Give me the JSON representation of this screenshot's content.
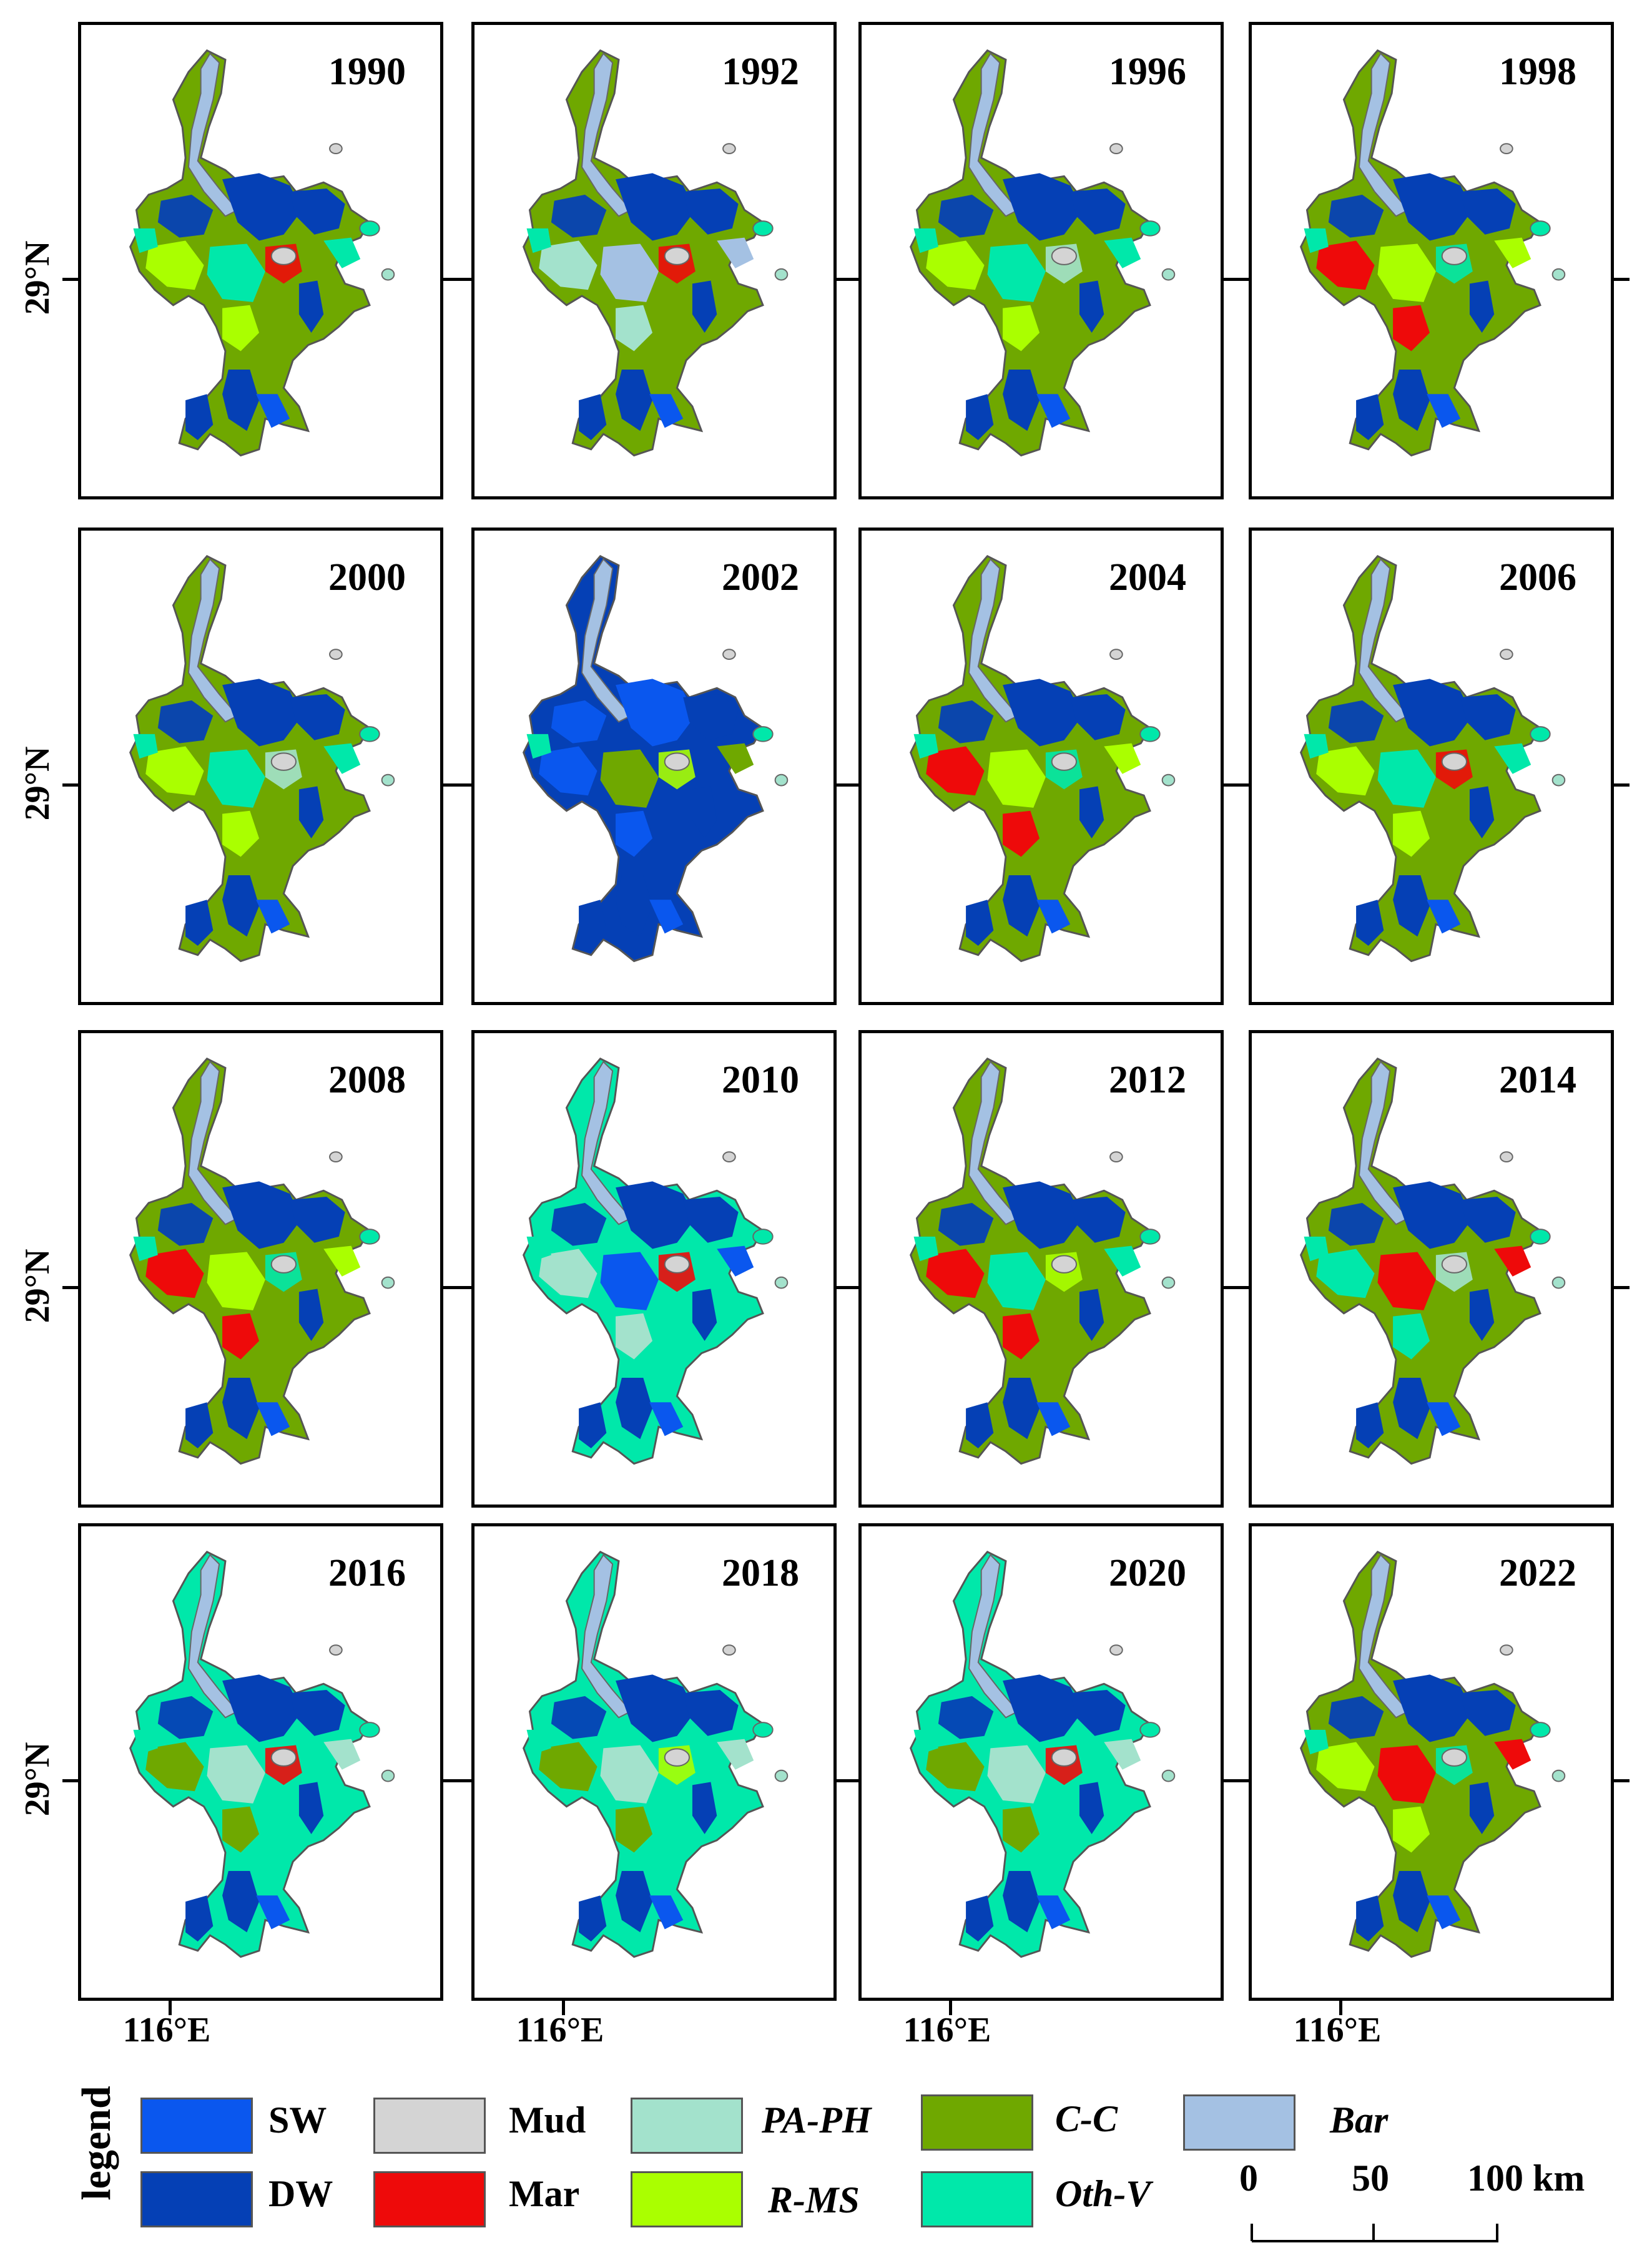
{
  "latitude_label": "29°N",
  "longitude_label": "116°E",
  "panels": [
    {
      "year": "1990"
    },
    {
      "year": "1992"
    },
    {
      "year": "1996"
    },
    {
      "year": "1998"
    },
    {
      "year": "2000"
    },
    {
      "year": "2002"
    },
    {
      "year": "2004"
    },
    {
      "year": "2006"
    },
    {
      "year": "2008"
    },
    {
      "year": "2010"
    },
    {
      "year": "2012"
    },
    {
      "year": "2014"
    },
    {
      "year": "2016"
    },
    {
      "year": "2018"
    },
    {
      "year": "2020"
    },
    {
      "year": "2022"
    }
  ],
  "legend": {
    "title": "legend",
    "items": [
      {
        "code": "SW",
        "color": "#0a57ee",
        "italic": false
      },
      {
        "code": "DW",
        "color": "#0540b5",
        "italic": false
      },
      {
        "code": "Mud",
        "color": "#d4d4d4",
        "italic": false
      },
      {
        "code": "Mar",
        "color": "#ee0a0a",
        "italic": false
      },
      {
        "code": "PA-PH",
        "color": "#a3e2cc",
        "italic": true
      },
      {
        "code": "R-MS",
        "color": "#aaff00",
        "italic": true
      },
      {
        "code": "C-C",
        "color": "#6fa800",
        "italic": true
      },
      {
        "code": "Oth-V",
        "color": "#00e8aa",
        "italic": true
      },
      {
        "code": "Bar",
        "color": "#a4c1e3",
        "italic": true
      }
    ]
  },
  "scale_bar": {
    "labels": [
      "0",
      "50",
      "100 km"
    ]
  }
}
